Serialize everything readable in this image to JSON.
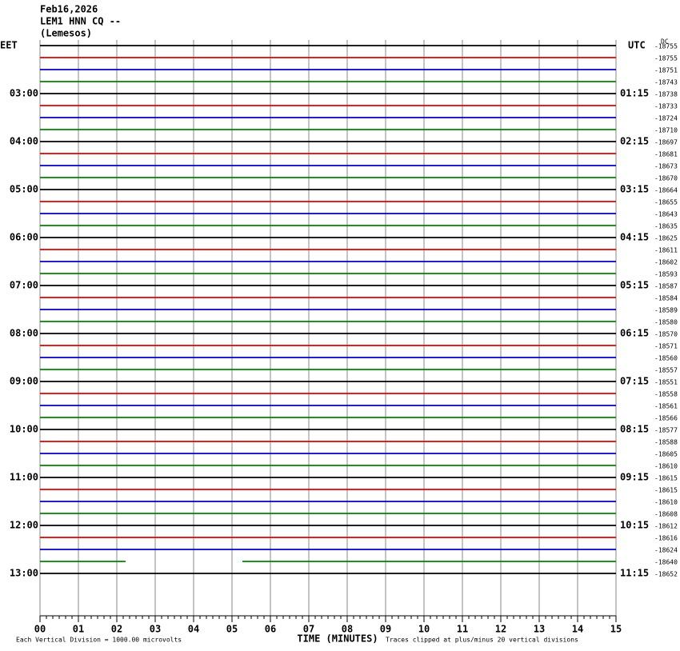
{
  "header": {
    "date": "Feb16,2026",
    "station": "LEM1 HNN CQ --",
    "location": "(Lemesos)"
  },
  "chart_data": {
    "type": "helicorder",
    "left_axis_title": "EET",
    "right_axis_title": "UTC",
    "dc_title": "DC",
    "left_labels": [
      null,
      null,
      null,
      null,
      "03:00",
      null,
      null,
      null,
      "04:00",
      null,
      null,
      null,
      "05:00",
      null,
      null,
      null,
      "06:00",
      null,
      null,
      null,
      "07:00",
      null,
      null,
      null,
      "08:00",
      null,
      null,
      null,
      "09:00",
      null,
      null,
      null,
      "10:00",
      null,
      null,
      null,
      "11:00",
      null,
      null,
      null,
      "12:00",
      null,
      null,
      null,
      "13:00"
    ],
    "right_labels": [
      null,
      null,
      null,
      null,
      "01:15",
      null,
      null,
      null,
      "02:15",
      null,
      null,
      null,
      "03:15",
      null,
      null,
      null,
      "04:15",
      null,
      null,
      null,
      "05:15",
      null,
      null,
      null,
      "06:15",
      null,
      null,
      null,
      "07:15",
      null,
      null,
      null,
      "08:15",
      null,
      null,
      null,
      "09:15",
      null,
      null,
      null,
      "10:15",
      null,
      null,
      null,
      "11:15"
    ],
    "dc_values": [
      -18755,
      -18755,
      -18751,
      -18743,
      -18738,
      -18733,
      -18724,
      -18710,
      -18697,
      -18681,
      -18673,
      -18670,
      -18664,
      -18655,
      -18643,
      -18635,
      -18625,
      -18611,
      -18602,
      -18593,
      -18587,
      -18584,
      -18589,
      -18580,
      -18570,
      -18571,
      -18560,
      -18557,
      -18551,
      -18558,
      -18561,
      -18566,
      -18577,
      -18588,
      -18605,
      -18610,
      -18615,
      -18615,
      -18610,
      -18608,
      -18612,
      -18616,
      -18624,
      -18640,
      -18652
    ],
    "colors": [
      "#000000",
      "#e00000",
      "#0000c0",
      "#008000"
    ],
    "xlim": [
      0,
      15
    ],
    "xticks": [
      {
        "value": 0,
        "label": "00"
      },
      {
        "value": 1,
        "label": "01"
      },
      {
        "value": 2,
        "label": "02"
      },
      {
        "value": 3,
        "label": "03"
      },
      {
        "value": 4,
        "label": "04"
      },
      {
        "value": 5,
        "label": "05"
      },
      {
        "value": 6,
        "label": "06"
      },
      {
        "value": 7,
        "label": "07"
      },
      {
        "value": 8,
        "label": "08"
      },
      {
        "value": 9,
        "label": "09"
      },
      {
        "value": 10,
        "label": "10"
      },
      {
        "value": 11,
        "label": "11"
      },
      {
        "value": 12,
        "label": "12"
      },
      {
        "value": 13,
        "label": "13"
      },
      {
        "value": 14,
        "label": "14"
      },
      {
        "value": 15,
        "label": "15"
      }
    ],
    "xlabel": "TIME (MINUTES)",
    "scale_note": "Each Vertical Division = 1000.00 microvolts",
    "clip_note": "Traces clipped at plus/minus 20 vertical divisions",
    "grid": true
  }
}
